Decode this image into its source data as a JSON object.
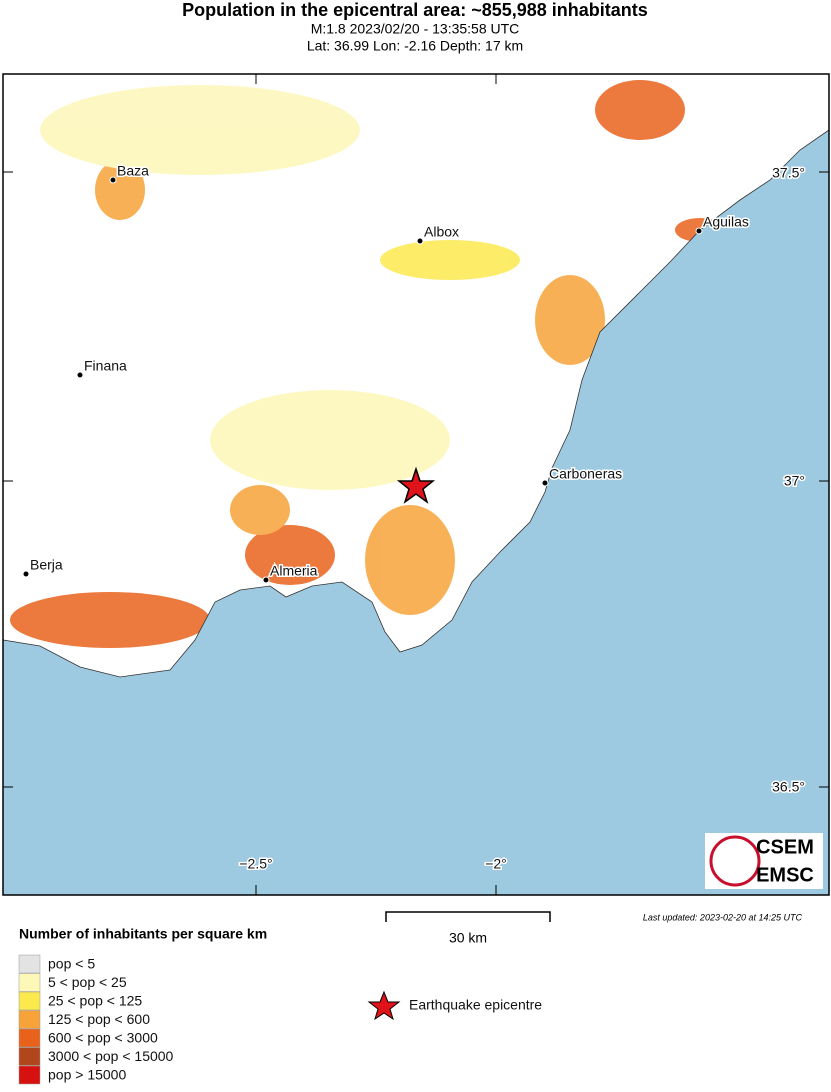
{
  "header": {
    "title": "Population in the epicentral area: ~855,988 inhabitants",
    "event": "M:1.8 2023/02/20 - 13:35:58 UTC",
    "location": "Lat: 36.99 Lon: -2.16 Depth: 17 km"
  },
  "map": {
    "cities": [
      "Baza",
      "Albox",
      "Aguilas",
      "Finana",
      "Carboneras",
      "Berja",
      "Almeria"
    ],
    "lat_labels": [
      "37.5°",
      "37°",
      "36.5°"
    ],
    "lon_labels": [
      "−2.5°",
      "−2°"
    ],
    "logo": [
      "CSEM",
      "EMSC"
    ]
  },
  "scale_bar": "30 km",
  "last_updated": "Last updated: 2023-02-20 at 14:25 UTC",
  "legend": {
    "title": "Number of inhabitants per square km",
    "items": [
      {
        "label": "pop < 5",
        "color": "#e3e3e3"
      },
      {
        "label": "5 < pop < 25",
        "color": "#fdf7b8"
      },
      {
        "label": "25 < pop < 125",
        "color": "#fbe94d"
      },
      {
        "label": "125 < pop < 600",
        "color": "#f7a33a"
      },
      {
        "label": "600 < pop < 3000",
        "color": "#e9621c"
      },
      {
        "label": "3000 < pop < 15000",
        "color": "#b0461a"
      },
      {
        "label": "pop > 15000",
        "color": "#d7110f"
      }
    ],
    "epicentre": "Earthquake epicentre"
  }
}
